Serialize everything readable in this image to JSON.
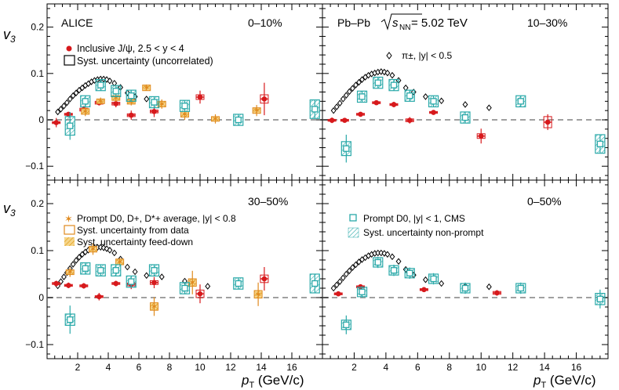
{
  "chart_data": [
    {
      "panel": "top-left",
      "type": "scatter",
      "label": "ALICE",
      "centrality": "0–10%",
      "ylabel": "v3",
      "ylim": [
        -0.13,
        0.25
      ],
      "xlim": [
        0,
        18
      ],
      "yticks": [
        -0.1,
        0,
        0.1,
        0.2
      ],
      "legend": [
        "Inclusive J/ψ, 2.5 < y < 4",
        "Syst. uncertainty (uncorrelated)"
      ],
      "series": [
        {
          "name": "pi",
          "points": [
            [
              0.7,
              0.017
            ],
            [
              0.9,
              0.023
            ],
            [
              1.1,
              0.03
            ],
            [
              1.3,
              0.037
            ],
            [
              1.5,
              0.045
            ],
            [
              1.7,
              0.052
            ],
            [
              1.9,
              0.058
            ],
            [
              2.1,
              0.064
            ],
            [
              2.3,
              0.069
            ],
            [
              2.5,
              0.074
            ],
            [
              2.7,
              0.078
            ],
            [
              2.9,
              0.082
            ],
            [
              3.1,
              0.085
            ],
            [
              3.3,
              0.087
            ],
            [
              3.5,
              0.088
            ],
            [
              3.7,
              0.088
            ],
            [
              3.9,
              0.087
            ],
            [
              4.1,
              0.084
            ],
            [
              4.4,
              0.079
            ],
            [
              4.8,
              0.07
            ],
            [
              5.25,
              0.058
            ],
            [
              5.75,
              0.05
            ],
            [
              6.5,
              0.045
            ],
            [
              7.5,
              0.035
            ],
            [
              9.0,
              0.03
            ]
          ]
        },
        {
          "name": "jpsi",
          "points": [
            [
              0.6,
              -0.006,
              0.01,
              0.002
            ],
            [
              1.4,
              0.012,
              0.004,
              0.002
            ],
            [
              2.4,
              0.022,
              0.008,
              0.003
            ],
            [
              3.4,
              0.037,
              0.006,
              0.003
            ],
            [
              4.5,
              0.035,
              0.008,
              0.003
            ],
            [
              5.5,
              0.01,
              0.01,
              0.003
            ],
            [
              7.0,
              0.018,
              0.012,
              0.003
            ],
            [
              10.0,
              0.049,
              0.014,
              0.005
            ],
            [
              14.2,
              0.045,
              0.035,
              0.009
            ]
          ]
        },
        {
          "name": "D",
          "points": [
            [
              2.5,
              0.018,
              0.01,
              0.006
            ],
            [
              3.5,
              0.04,
              0.008,
              0.005
            ],
            [
              4.5,
              0.047,
              0.008,
              0.005
            ],
            [
              5.5,
              0.039,
              0.008,
              0.005
            ],
            [
              6.5,
              0.069,
              0.006,
              0.006
            ],
            [
              7.5,
              0.034,
              0.01,
              0.006
            ],
            [
              9.0,
              0.012,
              0.012,
              0.006
            ],
            [
              11.0,
              0.002,
              0.01,
              0.005
            ],
            [
              13.7,
              0.02,
              0.012,
              0.006
            ]
          ]
        },
        {
          "name": "cms",
          "points": [
            [
              1.5,
              -0.013,
              0.03,
              0.02
            ],
            [
              2.5,
              0.04,
              0.012,
              0.012
            ],
            [
              3.5,
              0.075,
              0.012,
              0.012
            ],
            [
              4.5,
              0.062,
              0.012,
              0.012
            ],
            [
              5.5,
              0.052,
              0.012,
              0.012
            ],
            [
              7.0,
              0.038,
              0.012,
              0.012
            ],
            [
              9.0,
              0.03,
              0.012,
              0.012
            ],
            [
              12.5,
              0.0,
              0.012,
              0.012
            ],
            [
              17.5,
              0.023,
              0.02,
              0.02
            ]
          ]
        }
      ]
    },
    {
      "panel": "top-right",
      "type": "scatter",
      "label": "Pb–Pb",
      "energy": "5.02 TeV",
      "centrality": "10–30%",
      "ylim": [
        -0.13,
        0.25
      ],
      "xlim": [
        0,
        18
      ],
      "legend": [
        "π±, |y| < 0.5"
      ],
      "series": [
        {
          "name": "pi",
          "points": [
            [
              0.7,
              0.02
            ],
            [
              0.9,
              0.028
            ],
            [
              1.1,
              0.036
            ],
            [
              1.3,
              0.045
            ],
            [
              1.5,
              0.053
            ],
            [
              1.7,
              0.061
            ],
            [
              1.9,
              0.068
            ],
            [
              2.1,
              0.075
            ],
            [
              2.3,
              0.081
            ],
            [
              2.5,
              0.087
            ],
            [
              2.7,
              0.092
            ],
            [
              2.9,
              0.096
            ],
            [
              3.1,
              0.099
            ],
            [
              3.3,
              0.101
            ],
            [
              3.5,
              0.103
            ],
            [
              3.7,
              0.104
            ],
            [
              3.9,
              0.103
            ],
            [
              4.1,
              0.101
            ],
            [
              4.4,
              0.096
            ],
            [
              4.8,
              0.085
            ],
            [
              5.25,
              0.069
            ],
            [
              5.75,
              0.06
            ],
            [
              6.5,
              0.05
            ],
            [
              7.5,
              0.041
            ],
            [
              9.0,
              0.033
            ],
            [
              10.5,
              0.026
            ]
          ]
        },
        {
          "name": "jpsi",
          "points": [
            [
              0.6,
              -0.001,
              0.006,
              0.002
            ],
            [
              1.4,
              -0.001,
              0.005,
              0.002
            ],
            [
              2.4,
              0.012,
              0.004,
              0.002
            ],
            [
              3.4,
              0.037,
              0.005,
              0.002
            ],
            [
              4.5,
              0.033,
              0.006,
              0.002
            ],
            [
              5.5,
              -0.001,
              0.007,
              0.003
            ],
            [
              7.0,
              0.016,
              0.005,
              0.002
            ],
            [
              10.0,
              -0.035,
              0.016,
              0.005
            ],
            [
              14.2,
              -0.005,
              0.017,
              0.012
            ]
          ]
        },
        {
          "name": "cms",
          "points": [
            [
              1.5,
              -0.062,
              0.03,
              0.015
            ],
            [
              2.5,
              0.05,
              0.012,
              0.012
            ],
            [
              3.5,
              0.08,
              0.012,
              0.012
            ],
            [
              4.5,
              0.075,
              0.012,
              0.012
            ],
            [
              5.5,
              0.052,
              0.012,
              0.012
            ],
            [
              7.0,
              0.04,
              0.012,
              0.012
            ],
            [
              9.0,
              0.005,
              0.012,
              0.012
            ],
            [
              12.5,
              0.04,
              0.012,
              0.012
            ],
            [
              17.5,
              -0.052,
              0.02,
              0.02
            ]
          ]
        }
      ]
    },
    {
      "panel": "bottom-left",
      "type": "scatter",
      "centrality": "30–50%",
      "ylabel": "v3",
      "xlabel": "pT (GeV/c)",
      "ylim": [
        -0.13,
        0.25
      ],
      "xlim": [
        0,
        18
      ],
      "xticks": [
        2,
        4,
        6,
        8,
        10,
        12,
        14,
        16
      ],
      "legend": [
        "Prompt D0, D+, D*+ average, |y| < 0.8",
        "Syst. uncertainty from data",
        "Syst. uncertainty feed-down"
      ],
      "series": [
        {
          "name": "pi",
          "points": [
            [
              0.7,
              0.025
            ],
            [
              0.9,
              0.034
            ],
            [
              1.1,
              0.044
            ],
            [
              1.3,
              0.053
            ],
            [
              1.5,
              0.062
            ],
            [
              1.7,
              0.071
            ],
            [
              1.9,
              0.079
            ],
            [
              2.1,
              0.086
            ],
            [
              2.3,
              0.092
            ],
            [
              2.5,
              0.097
            ],
            [
              2.7,
              0.101
            ],
            [
              2.9,
              0.104
            ],
            [
              3.1,
              0.106
            ],
            [
              3.3,
              0.107
            ],
            [
              3.5,
              0.107
            ],
            [
              3.7,
              0.106
            ],
            [
              3.9,
              0.104
            ],
            [
              4.1,
              0.101
            ],
            [
              4.4,
              0.095
            ],
            [
              4.8,
              0.082
            ],
            [
              5.25,
              0.065
            ],
            [
              5.75,
              0.055
            ],
            [
              6.5,
              0.047
            ],
            [
              7.5,
              0.044
            ],
            [
              9.0,
              0.035
            ],
            [
              10.5,
              0.024
            ]
          ]
        },
        {
          "name": "jpsi",
          "points": [
            [
              0.6,
              0.03,
              0.006,
              0.002
            ],
            [
              1.4,
              0.026,
              0.006,
              0.002
            ],
            [
              2.4,
              0.025,
              0.006,
              0.002
            ],
            [
              3.4,
              0.002,
              0.008,
              0.002
            ],
            [
              4.5,
              0.03,
              0.006,
              0.002
            ],
            [
              5.5,
              0.028,
              0.01,
              0.003
            ],
            [
              7.0,
              0.032,
              0.012,
              0.004
            ],
            [
              10.0,
              0.008,
              0.02,
              0.008
            ],
            [
              14.2,
              0.04,
              0.025,
              0.008
            ]
          ]
        },
        {
          "name": "D",
          "points": [
            [
              1.5,
              0.054,
              0.01,
              0.005
            ],
            [
              3.0,
              0.103,
              0.012,
              0.006
            ],
            [
              4.75,
              0.076,
              0.008,
              0.006
            ],
            [
              7.0,
              -0.019,
              0.02,
              0.008
            ],
            [
              9.5,
              0.032,
              0.025,
              0.008
            ],
            [
              13.8,
              0.007,
              0.025,
              0.008
            ]
          ]
        },
        {
          "name": "cms",
          "points": [
            [
              1.5,
              -0.047,
              0.03,
              0.012
            ],
            [
              2.5,
              0.062,
              0.012,
              0.012
            ],
            [
              3.5,
              0.058,
              0.012,
              0.012
            ],
            [
              4.5,
              0.058,
              0.012,
              0.012
            ],
            [
              5.5,
              0.034,
              0.012,
              0.012
            ],
            [
              7.0,
              0.058,
              0.012,
              0.012
            ],
            [
              9.0,
              0.02,
              0.012,
              0.012
            ],
            [
              12.5,
              0.03,
              0.012,
              0.012
            ],
            [
              17.5,
              0.03,
              0.02,
              0.02
            ]
          ]
        }
      ]
    },
    {
      "panel": "bottom-right",
      "type": "scatter",
      "centrality": "0–50%",
      "xlabel": "pT (GeV/c)",
      "ylim": [
        -0.13,
        0.25
      ],
      "xlim": [
        0,
        18
      ],
      "xticks": [
        2,
        4,
        6,
        8,
        10,
        12,
        14,
        16
      ],
      "legend": [
        "Prompt D0, |y| < 1, CMS",
        "Syst. uncertainty non-prompt"
      ],
      "series": [
        {
          "name": "pi",
          "points": [
            [
              0.7,
              0.02
            ],
            [
              0.9,
              0.027
            ],
            [
              1.1,
              0.034
            ],
            [
              1.3,
              0.042
            ],
            [
              1.5,
              0.05
            ],
            [
              1.7,
              0.057
            ],
            [
              1.9,
              0.064
            ],
            [
              2.1,
              0.07
            ],
            [
              2.3,
              0.076
            ],
            [
              2.5,
              0.081
            ],
            [
              2.7,
              0.085
            ],
            [
              2.9,
              0.089
            ],
            [
              3.1,
              0.092
            ],
            [
              3.3,
              0.094
            ],
            [
              3.5,
              0.095
            ],
            [
              3.7,
              0.095
            ],
            [
              3.9,
              0.094
            ],
            [
              4.1,
              0.092
            ],
            [
              4.4,
              0.087
            ],
            [
              4.8,
              0.077
            ],
            [
              5.25,
              0.06
            ],
            [
              5.75,
              0.048
            ],
            [
              6.5,
              0.038
            ],
            [
              7.5,
              0.03
            ],
            [
              9.0,
              0.024
            ],
            [
              10.5,
              0.023
            ]
          ]
        },
        {
          "name": "jpsi",
          "points": [
            [
              1.0,
              0.008,
              0.004,
              0.002
            ],
            [
              2.4,
              0.023,
              0.004,
              0.002
            ],
            [
              6.4,
              0.017,
              0.004,
              0.002
            ],
            [
              11.0,
              0.01,
              0.006,
              0.003
            ]
          ]
        },
        {
          "name": "cms",
          "points": [
            [
              1.5,
              -0.058,
              0.02,
              0.01
            ],
            [
              2.5,
              0.012,
              0.012,
              0.01
            ],
            [
              3.5,
              0.075,
              0.012,
              0.01
            ],
            [
              4.5,
              0.058,
              0.012,
              0.01
            ],
            [
              5.5,
              0.052,
              0.012,
              0.01
            ],
            [
              7.0,
              0.04,
              0.012,
              0.01
            ],
            [
              9.0,
              0.02,
              0.012,
              0.01
            ],
            [
              12.5,
              0.02,
              0.012,
              0.01
            ],
            [
              17.5,
              -0.003,
              0.02,
              0.012
            ]
          ]
        }
      ]
    }
  ],
  "labels": {
    "alice": "ALICE",
    "pbpb": "Pb–Pb",
    "sqrt_s": "s",
    "sqrt_sub": "NN",
    "energy": " = 5.02 TeV",
    "c010": "0–10%",
    "c1030": "10–30%",
    "c3050": "30–50%",
    "c050": "0–50%",
    "ylabel_v": "v",
    "ylabel_sub": "3",
    "xlabel_p": "p",
    "xlabel_sub": "T",
    "xlabel_unit": " (GeV/c)",
    "leg_jpsi": "Inclusive J/ψ, 2.5 < y < 4",
    "leg_syst_unc": "Syst. uncertainty (uncorrelated)",
    "leg_pi": "π±, |y| < 0.5",
    "leg_D": "Prompt D0, D+, D*+ average, |y| < 0.8",
    "leg_D_data": "Syst. uncertainty from data",
    "leg_D_fd": "Syst. uncertainty feed-down",
    "leg_cms": "Prompt D0, |y| < 1, CMS",
    "leg_cms_np": "Syst. uncertainty non-prompt"
  },
  "colors": {
    "jpsi": "#d7191c",
    "d": "#e08a1e",
    "cms": "#2aa9a9",
    "pi": "#000000",
    "dash": "#a0a0a0"
  }
}
